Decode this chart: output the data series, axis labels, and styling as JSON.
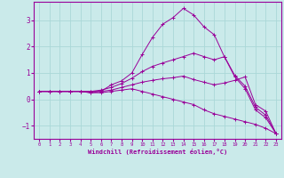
{
  "xlabel": "Windchill (Refroidissement éolien,°C)",
  "ylabel": "",
  "bg_color": "#caeaea",
  "line_color": "#990099",
  "grid_color": "#aad8d8",
  "x_data": [
    0,
    1,
    2,
    3,
    4,
    5,
    6,
    7,
    8,
    9,
    10,
    11,
    12,
    13,
    14,
    15,
    16,
    17,
    18,
    19,
    20,
    21,
    22,
    23
  ],
  "series": [
    [
      0.3,
      0.3,
      0.3,
      0.3,
      0.3,
      0.3,
      0.3,
      0.55,
      0.7,
      1.0,
      1.7,
      2.35,
      2.85,
      3.1,
      3.45,
      3.2,
      2.75,
      2.45,
      1.6,
      0.85,
      0.4,
      -0.4,
      -0.7,
      -1.3
    ],
    [
      0.3,
      0.3,
      0.3,
      0.3,
      0.3,
      0.3,
      0.35,
      0.45,
      0.6,
      0.8,
      1.05,
      1.25,
      1.38,
      1.5,
      1.62,
      1.75,
      1.62,
      1.5,
      1.62,
      0.9,
      0.5,
      -0.3,
      -0.6,
      -1.3
    ],
    [
      0.3,
      0.3,
      0.3,
      0.3,
      0.3,
      0.25,
      0.3,
      0.35,
      0.45,
      0.55,
      0.65,
      0.72,
      0.78,
      0.82,
      0.88,
      0.75,
      0.65,
      0.55,
      0.62,
      0.72,
      0.85,
      -0.2,
      -0.45,
      -1.3
    ],
    [
      0.3,
      0.3,
      0.3,
      0.3,
      0.3,
      0.25,
      0.25,
      0.3,
      0.35,
      0.4,
      0.3,
      0.2,
      0.1,
      0.0,
      -0.1,
      -0.2,
      -0.4,
      -0.55,
      -0.65,
      -0.75,
      -0.85,
      -0.95,
      -1.1,
      -1.3
    ]
  ],
  "yticks": [
    -1,
    0,
    1,
    2,
    3
  ],
  "xticks": [
    0,
    1,
    2,
    3,
    4,
    5,
    6,
    7,
    8,
    9,
    10,
    11,
    12,
    13,
    14,
    15,
    16,
    17,
    18,
    19,
    20,
    21,
    22,
    23
  ],
  "ylim": [
    -1.5,
    3.7
  ],
  "xlim": [
    -0.5,
    23.5
  ]
}
